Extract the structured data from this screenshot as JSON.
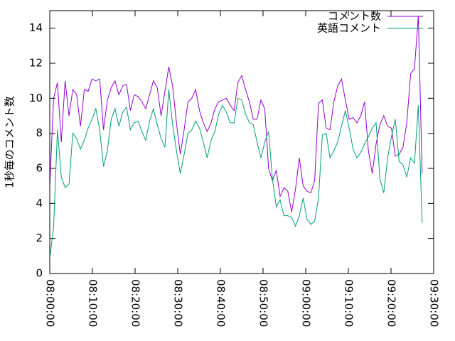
{
  "chart_data": {
    "type": "line",
    "y_label": "1秒毎のコメント数",
    "x": [
      "08:00:00",
      "08:00:54",
      "08:01:48",
      "08:02:42",
      "08:03:36",
      "08:04:30",
      "08:05:24",
      "08:06:18",
      "08:07:12",
      "08:08:06",
      "08:09:00",
      "08:09:54",
      "08:10:48",
      "08:11:42",
      "08:12:36",
      "08:13:30",
      "08:14:24",
      "08:15:18",
      "08:16:12",
      "08:17:06",
      "08:18:00",
      "08:18:54",
      "08:19:48",
      "08:20:42",
      "08:21:36",
      "08:22:30",
      "08:23:24",
      "08:24:18",
      "08:25:12",
      "08:26:06",
      "08:27:00",
      "08:27:54",
      "08:28:48",
      "08:29:42",
      "08:30:36",
      "08:31:30",
      "08:32:24",
      "08:33:18",
      "08:34:12",
      "08:35:06",
      "08:36:00",
      "08:36:54",
      "08:37:48",
      "08:38:42",
      "08:39:36",
      "08:40:30",
      "08:41:24",
      "08:42:18",
      "08:43:12",
      "08:44:06",
      "08:45:00",
      "08:45:54",
      "08:46:48",
      "08:47:42",
      "08:48:36",
      "08:49:30",
      "08:50:24",
      "08:51:18",
      "08:52:12",
      "08:53:06",
      "08:54:00",
      "08:54:54",
      "08:55:48",
      "08:56:42",
      "08:57:36",
      "08:58:30",
      "08:59:24",
      "09:00:18",
      "09:01:12",
      "09:02:06",
      "09:03:00",
      "09:03:54",
      "09:04:48",
      "09:05:42",
      "09:06:36",
      "09:07:30",
      "09:08:24",
      "09:09:18",
      "09:10:12",
      "09:11:06",
      "09:12:00",
      "09:12:54",
      "09:13:48",
      "09:14:42",
      "09:15:36",
      "09:16:30",
      "09:17:24",
      "09:18:18",
      "09:19:12",
      "09:20:06",
      "09:21:00",
      "09:21:54",
      "09:22:48",
      "09:23:42",
      "09:24:36",
      "09:25:30",
      "09:26:24",
      "09:27:18"
    ],
    "series": [
      {
        "name": "コメント数",
        "color": "#9400d3",
        "values": [
          5.0,
          10.0,
          10.9,
          7.5,
          11.0,
          9.0,
          10.5,
          10.2,
          8.4,
          10.5,
          10.4,
          11.1,
          11.0,
          11.1,
          8.2,
          9.9,
          10.6,
          11.0,
          10.2,
          10.7,
          10.8,
          9.3,
          10.2,
          10.1,
          9.8,
          9.4,
          10.2,
          11.0,
          10.6,
          9.0,
          10.4,
          11.8,
          10.7,
          8.6,
          6.8,
          8.2,
          9.8,
          10.0,
          10.5,
          9.3,
          8.6,
          8.1,
          8.6,
          9.4,
          9.8,
          9.9,
          10.0,
          9.6,
          9.3,
          10.9,
          11.3,
          10.5,
          9.8,
          8.8,
          8.8,
          9.9,
          9.4,
          6.0,
          5.3,
          5.9,
          4.4,
          4.9,
          4.7,
          3.5,
          4.8,
          6.6,
          5.0,
          4.7,
          4.6,
          5.3,
          9.7,
          9.9,
          8.3,
          8.2,
          9.8,
          10.7,
          11.1,
          9.9,
          8.8,
          8.9,
          8.6,
          9.0,
          9.8,
          7.0,
          5.7,
          7.4,
          8.5,
          9.0,
          8.4,
          8.3,
          6.7,
          6.8,
          7.2,
          8.6,
          11.4,
          11.7,
          14.7,
          5.7
        ]
      },
      {
        "name": "英語コメント",
        "color": "#009e73",
        "values": [
          0.9,
          2.6,
          8.2,
          5.5,
          4.9,
          5.1,
          8.0,
          7.7,
          7.1,
          7.6,
          8.3,
          8.8,
          9.4,
          8.2,
          6.1,
          7.0,
          8.8,
          9.4,
          8.4,
          9.2,
          9.5,
          8.2,
          8.6,
          8.7,
          8.1,
          7.6,
          8.7,
          9.4,
          8.5,
          7.7,
          7.2,
          10.5,
          8.5,
          7.0,
          5.7,
          6.8,
          8.0,
          8.2,
          8.7,
          8.3,
          7.5,
          6.6,
          7.6,
          8.1,
          9.1,
          9.6,
          9.2,
          8.6,
          8.6,
          10.0,
          9.9,
          9.1,
          8.6,
          8.5,
          7.5,
          6.6,
          7.5,
          8.1,
          5.4,
          3.8,
          4.2,
          3.3,
          3.3,
          3.2,
          2.7,
          3.3,
          4.3,
          3.1,
          2.8,
          3.0,
          4.3,
          7.9,
          8.0,
          6.6,
          7.0,
          7.5,
          8.4,
          9.3,
          8.3,
          7.1,
          6.6,
          6.9,
          7.4,
          7.8,
          8.3,
          8.6,
          5.4,
          4.6,
          6.6,
          7.8,
          8.8,
          6.4,
          6.2,
          5.5,
          6.6,
          6.3,
          9.6,
          2.9
        ]
      }
    ],
    "xlim": [
      "08:00:00",
      "09:30:00"
    ],
    "xticks": [
      "08:00:00",
      "08:10:00",
      "08:20:00",
      "08:30:00",
      "08:40:00",
      "08:50:00",
      "09:00:00",
      "09:10:00",
      "09:20:00",
      "09:30:00"
    ],
    "ylim": [
      0,
      15
    ],
    "yticks": [
      0,
      2,
      4,
      6,
      8,
      10,
      12,
      14
    ],
    "legend": "top-right"
  }
}
